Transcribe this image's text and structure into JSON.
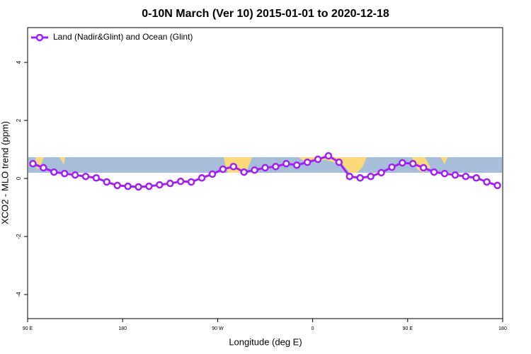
{
  "chart_data": {
    "type": "line",
    "title": "0-10N March (Ver 10)   2015-01-01 to 2020-12-18",
    "xlabel": "Longitude (deg E)",
    "ylabel": "XCO2 - MLO trend (ppm)",
    "xlim": [
      90,
      540
    ],
    "xticks": [
      {
        "value": 90,
        "label": "90 E"
      },
      180,
      {
        "value": 270,
        "label": "90 W"
      },
      {
        "value": 360,
        "label": "0"
      },
      {
        "value": 450,
        "label": "90 E"
      },
      {
        "value": 540,
        "label": "180"
      }
    ],
    "ylim": [
      -4.83,
      5.2
    ],
    "yticks": [
      -4,
      -2,
      0,
      2,
      4
    ],
    "legend": "upper left",
    "x": [
      95,
      105,
      115,
      125,
      135,
      145,
      155,
      165,
      175,
      185,
      195,
      205,
      215,
      225,
      235,
      245,
      255,
      265,
      275,
      285,
      295,
      305,
      315,
      325,
      335,
      345,
      355,
      365,
      375,
      385,
      395,
      405,
      415,
      425,
      435,
      445,
      455,
      465,
      475,
      485,
      495,
      505,
      515,
      525,
      535
    ],
    "series": [
      {
        "name": "Land (Nadir&Glint) and Ocean (Glint)",
        "color": "#a020f0",
        "values": [
          0.51,
          0.37,
          0.22,
          0.17,
          0.12,
          0.07,
          0.02,
          -0.12,
          -0.24,
          -0.27,
          -0.29,
          -0.27,
          -0.22,
          -0.17,
          -0.1,
          -0.12,
          0.02,
          0.15,
          0.32,
          0.41,
          0.22,
          0.29,
          0.37,
          0.41,
          0.51,
          0.46,
          0.56,
          0.66,
          0.78,
          0.56,
          0.07,
          0.02,
          0.07,
          0.2,
          0.39,
          0.54,
          0.51,
          0.37,
          0.22,
          0.17,
          0.12,
          0.07,
          0.02,
          -0.12,
          -0.24
        ]
      }
    ]
  }
}
